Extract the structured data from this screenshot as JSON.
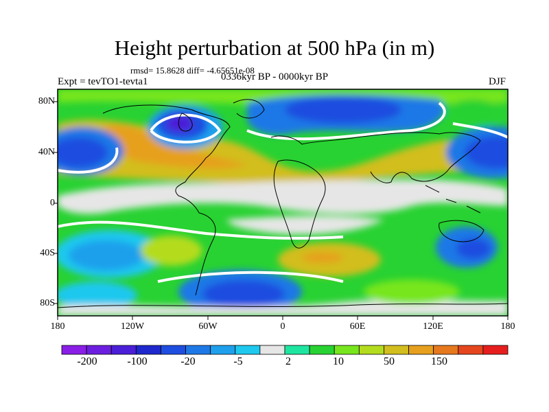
{
  "title": "Height perturbation at 500 hPa (in m)",
  "stats": "rmsd= 15.8628 diff= -4.65651e-08",
  "experiment": "Expt = tevTO1-tevta1",
  "period": "0336kyr BP - 0000kyr BP",
  "season": "DJF",
  "lat_labels": [
    "80N",
    "40N",
    "0",
    "40S",
    "80S"
  ],
  "lon_labels": [
    "180",
    "120W",
    "60W",
    "0",
    "60E",
    "120E",
    "180"
  ],
  "colorbar": {
    "labels": [
      "-200",
      "-100",
      "-20",
      "-5",
      "2",
      "10",
      "50",
      "150"
    ],
    "colors": [
      "#8a1ee6",
      "#6c1ee0",
      "#4b1ed8",
      "#1e28cc",
      "#1e4ee0",
      "#1e78e6",
      "#1ea0ec",
      "#1ec8ee",
      "#e6e6e6",
      "#1ee6a0",
      "#28d232",
      "#78e61e",
      "#b4dc1e",
      "#d2be1e",
      "#e6a01e",
      "#e6781e",
      "#e6461e",
      "#e61e1e"
    ]
  }
}
